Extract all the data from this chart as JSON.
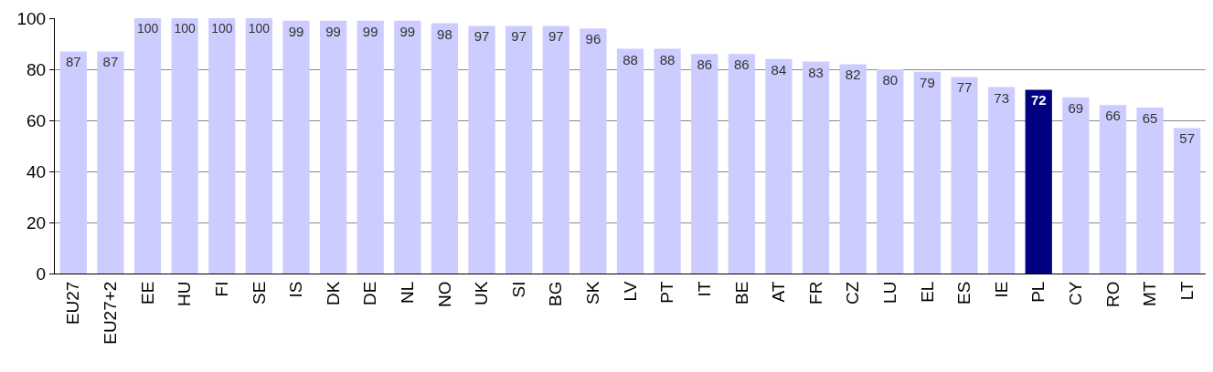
{
  "chart_data": {
    "type": "bar",
    "categories": [
      "EU27",
      "EU27+2",
      "EE",
      "HU",
      "FI",
      "SE",
      "IS",
      "DK",
      "DE",
      "NL",
      "NO",
      "UK",
      "SI",
      "BG",
      "SK",
      "LV",
      "PT",
      "IT",
      "BE",
      "AT",
      "FR",
      "CZ",
      "LU",
      "EL",
      "ES",
      "IE",
      "PL",
      "CY",
      "RO",
      "MT",
      "LT"
    ],
    "values": [
      87,
      87,
      100,
      100,
      100,
      100,
      99,
      99,
      99,
      99,
      98,
      97,
      97,
      97,
      96,
      88,
      88,
      86,
      86,
      84,
      83,
      82,
      80,
      79,
      77,
      73,
      72,
      69,
      66,
      65,
      57
    ],
    "colors": [
      "#ccccff",
      "#ccccff",
      "#ccccff",
      "#ccccff",
      "#ccccff",
      "#ccccff",
      "#ccccff",
      "#ccccff",
      "#ccccff",
      "#ccccff",
      "#ccccff",
      "#ccccff",
      "#ccccff",
      "#ccccff",
      "#ccccff",
      "#ccccff",
      "#ccccff",
      "#ccccff",
      "#ccccff",
      "#ccccff",
      "#ccccff",
      "#ccccff",
      "#ccccff",
      "#ccccff",
      "#ccccff",
      "#ccccff",
      "#000080",
      "#ccccff",
      "#ccccff",
      "#ccccff",
      "#ccccff"
    ],
    "ylim": [
      0,
      100
    ],
    "yticks": [
      0,
      20,
      40,
      60,
      80,
      100
    ],
    "grid": "y",
    "data_labels": true
  }
}
